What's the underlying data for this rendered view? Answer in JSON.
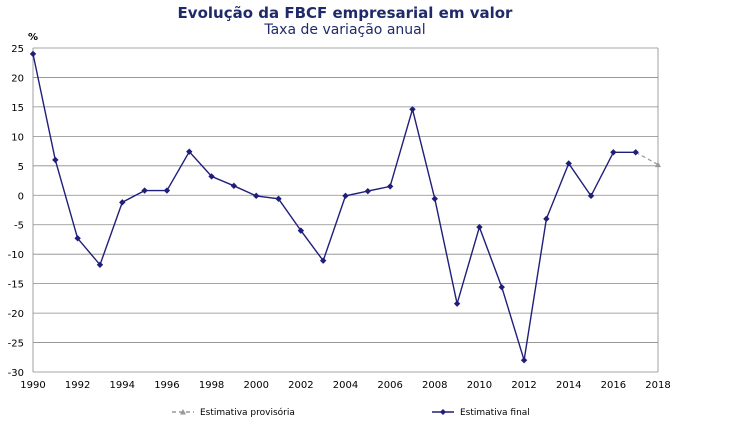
{
  "chart_data": {
    "type": "line",
    "title": "Evolução da FBCF empresarial em valor",
    "subtitle": "Taxa de variação anual",
    "ylabel": "%",
    "ylim": [
      -30,
      25
    ],
    "yticks": [
      25,
      20,
      15,
      10,
      5,
      0,
      -5,
      -10,
      -15,
      -20,
      -25,
      -30
    ],
    "xlim": [
      1990,
      2018
    ],
    "xticks": [
      1990,
      1992,
      1994,
      1996,
      1998,
      2000,
      2002,
      2004,
      2006,
      2008,
      2010,
      2012,
      2014,
      2016,
      2018
    ],
    "grid": "horizontal",
    "legend_position": "bottom",
    "series": [
      {
        "name": "Estimativa final",
        "color": "#1f1f7a",
        "style": "solid",
        "marker": "diamond",
        "x": [
          1990,
          1991,
          1992,
          1993,
          1994,
          1995,
          1996,
          1997,
          1998,
          1999,
          2000,
          2001,
          2002,
          2003,
          2004,
          2005,
          2006,
          2007,
          2008,
          2009,
          2010,
          2011,
          2012,
          2013,
          2014,
          2015,
          2016,
          2017
        ],
        "values": [
          24,
          6,
          -7.3,
          -11.8,
          -1.2,
          0.8,
          0.8,
          7.4,
          3.2,
          1.6,
          -0.1,
          -0.6,
          -6,
          -11.1,
          -0.1,
          0.7,
          1.5,
          14.6,
          -0.6,
          -18.4,
          -5.4,
          -15.6,
          -28,
          -4,
          5.4,
          -0.1,
          7.3,
          7.3
        ]
      },
      {
        "name": "Estimativa provisória",
        "color": "#999999",
        "style": "dashed",
        "marker": "triangle",
        "x": [
          2017,
          2018
        ],
        "values": [
          7.3,
          5.2
        ]
      }
    ]
  }
}
